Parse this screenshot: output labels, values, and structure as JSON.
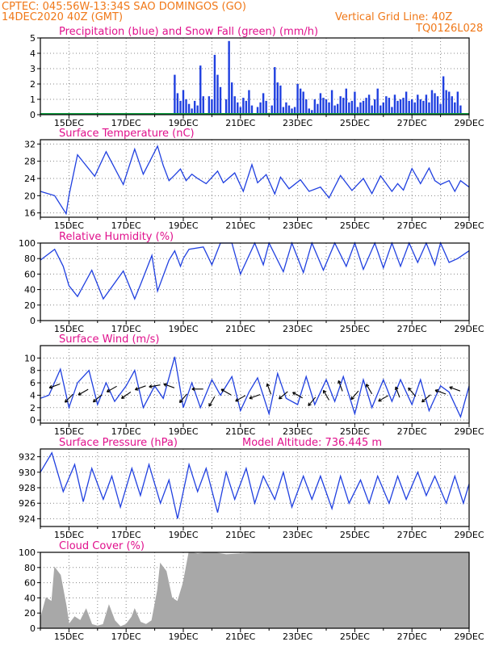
{
  "header": {
    "line1": "CPTEC:  045:56W-13:34S  SAO DOMINGOS (GO)",
    "line2": "14DEC2020 40Z (GMT)",
    "right1": "Vertical Grid Line: 40Z",
    "right2": "TQ0126L028"
  },
  "colors": {
    "header": "#f07818",
    "title": "#e0108c",
    "series": "#2040e0",
    "snow": "#10a040",
    "cloud": "#a8a8a8",
    "grid": "#888888",
    "axis": "#000000"
  },
  "chart_data": [
    {
      "id": "precip",
      "type": "bar",
      "title": "Precipitation (blue) and Snow Fall (green) (mm/h)",
      "ylim": [
        0,
        5
      ],
      "yticks": [
        0,
        1,
        2,
        3,
        4,
        5
      ],
      "xticks": [
        "15DEC",
        "17DEC",
        "19DEC",
        "21DEC",
        "23DEC",
        "25DEC",
        "27DEC",
        "29DEC"
      ],
      "x": [
        4.7,
        4.8,
        4.9,
        5.0,
        5.1,
        5.2,
        5.3,
        5.4,
        5.5,
        5.6,
        5.7,
        5.9,
        6.0,
        6.1,
        6.2,
        6.3,
        6.5,
        6.6,
        6.7,
        6.8,
        6.9,
        7.0,
        7.1,
        7.2,
        7.3,
        7.4,
        7.6,
        7.7,
        7.8,
        7.9,
        8.1,
        8.2,
        8.3,
        8.4,
        8.5,
        8.6,
        8.7,
        8.8,
        8.9,
        9.0,
        9.1,
        9.2,
        9.3,
        9.4,
        9.5,
        9.6,
        9.7,
        9.8,
        9.9,
        10.0,
        10.1,
        10.2,
        10.3,
        10.4,
        10.5,
        10.6,
        10.7,
        10.8,
        10.9,
        11.0,
        11.1,
        11.2,
        11.3,
        11.4,
        11.5,
        11.6,
        11.7,
        11.8,
        11.9,
        12.0,
        12.1,
        12.2,
        12.3,
        12.4,
        12.5,
        12.6,
        12.7,
        12.8,
        12.9,
        13.0,
        13.1,
        13.2,
        13.3,
        13.4,
        13.5,
        13.6,
        13.7,
        13.8,
        13.9,
        14.0,
        14.1,
        14.2,
        14.3,
        14.4,
        14.5,
        14.6,
        14.7
      ],
      "values": [
        2.6,
        1.4,
        0.9,
        1.6,
        1.0,
        0.7,
        0.4,
        0.9,
        0.6,
        3.2,
        1.2,
        1.2,
        1.0,
        3.9,
        2.6,
        1.8,
        1.0,
        4.8,
        2.1,
        1.2,
        0.8,
        0.5,
        1.1,
        0.9,
        1.6,
        0.6,
        0.5,
        0.8,
        1.4,
        0.9,
        0.6,
        3.1,
        2.1,
        1.9,
        0.5,
        0.8,
        0.6,
        0.4,
        0.5,
        2.0,
        1.7,
        1.5,
        1.0,
        0.4,
        0.3,
        1.0,
        0.7,
        1.4,
        1.1,
        1.0,
        0.8,
        1.6,
        0.6,
        0.7,
        1.2,
        1.1,
        1.7,
        0.8,
        0.9,
        1.5,
        0.5,
        0.8,
        0.9,
        1.1,
        1.3,
        0.6,
        1.0,
        1.7,
        0.6,
        0.8,
        1.2,
        1.1,
        0.5,
        1.3,
        0.9,
        1.0,
        1.1,
        1.5,
        0.9,
        1.0,
        0.8,
        1.3,
        1.0,
        0.9,
        1.3,
        0.8,
        1.6,
        1.4,
        1.2,
        0.7,
        2.5,
        1.6,
        1.5,
        1.2,
        0.8,
        1.5,
        0.6
      ]
    },
    {
      "id": "temp",
      "type": "line",
      "title": "Surface Temperature (nC)",
      "ylim": [
        15,
        33
      ],
      "yticks": [
        16,
        20,
        24,
        28,
        32
      ],
      "xticks": [
        "15DEC",
        "17DEC",
        "19DEC",
        "21DEC",
        "23DEC",
        "25DEC",
        "27DEC",
        "29DEC"
      ],
      "x": [
        0.0,
        0.5,
        0.9,
        1.0,
        1.3,
        1.9,
        2.3,
        2.9,
        3.3,
        3.6,
        4.1,
        4.3,
        4.5,
        4.7,
        4.9,
        5.1,
        5.3,
        5.5,
        5.8,
        6.2,
        6.4,
        6.8,
        7.1,
        7.4,
        7.6,
        7.9,
        8.2,
        8.4,
        8.7,
        9.1,
        9.4,
        9.8,
        10.1,
        10.5,
        10.9,
        11.3,
        11.6,
        11.9,
        12.3,
        12.5,
        12.7,
        13.0,
        13.3,
        13.6,
        13.8,
        14.0,
        14.3,
        14.5,
        14.7,
        15.0
      ],
      "values": [
        21.0,
        20.0,
        15.8,
        20.0,
        29.5,
        24.5,
        30.2,
        22.6,
        30.8,
        25.0,
        31.5,
        27.0,
        23.5,
        24.8,
        26.2,
        23.5,
        25.0,
        24.0,
        22.8,
        25.7,
        23.0,
        25.3,
        21.0,
        27.2,
        23.0,
        24.9,
        20.4,
        24.3,
        21.6,
        23.7,
        21.0,
        22.0,
        19.5,
        24.7,
        21.2,
        24.0,
        20.5,
        24.6,
        21.0,
        22.8,
        21.3,
        26.3,
        22.8,
        26.4,
        23.5,
        22.6,
        23.5,
        21.0,
        23.5,
        22.0
      ]
    },
    {
      "id": "rh",
      "type": "line",
      "title": "Relative Humidity (%)",
      "ylim": [
        0,
        100
      ],
      "yticks": [
        0,
        20,
        40,
        60,
        80,
        100
      ],
      "xticks": [
        "15DEC",
        "17DEC",
        "19DEC",
        "21DEC",
        "23DEC",
        "25DEC",
        "27DEC",
        "29DEC"
      ],
      "x": [
        0.0,
        0.5,
        0.8,
        1.0,
        1.3,
        1.8,
        2.2,
        2.9,
        3.3,
        3.5,
        3.9,
        4.1,
        4.5,
        4.7,
        4.9,
        5.0,
        5.2,
        5.7,
        6.0,
        6.3,
        6.7,
        7.0,
        7.5,
        7.8,
        8.0,
        8.5,
        8.8,
        9.2,
        9.5,
        9.9,
        10.3,
        10.7,
        11.0,
        11.3,
        11.7,
        12.0,
        12.3,
        12.6,
        12.9,
        13.2,
        13.5,
        13.8,
        14.0,
        14.3,
        14.6,
        15.0
      ],
      "values": [
        78,
        92,
        70,
        45,
        31,
        65,
        28,
        64,
        28,
        46,
        84,
        38,
        78,
        90,
        70,
        80,
        92,
        95,
        72,
        100,
        100,
        60,
        100,
        72,
        100,
        63,
        100,
        62,
        100,
        65,
        100,
        70,
        100,
        66,
        100,
        68,
        100,
        70,
        100,
        75,
        100,
        72,
        100,
        75,
        80,
        90
      ]
    },
    {
      "id": "wind",
      "type": "line",
      "title": "Surface Wind (m/s)",
      "ylim": [
        -0.5,
        12
      ],
      "yticks": [
        0,
        2,
        4,
        6,
        8,
        10
      ],
      "xticks": [
        "15DEC",
        "17DEC",
        "19DEC",
        "21DEC",
        "23DEC",
        "25DEC",
        "27DEC",
        "29DEC"
      ],
      "x": [
        0.0,
        0.3,
        0.7,
        1.0,
        1.3,
        1.7,
        2.0,
        2.3,
        2.6,
        3.0,
        3.3,
        3.6,
        4.0,
        4.3,
        4.7,
        5.0,
        5.3,
        5.6,
        6.0,
        6.3,
        6.7,
        7.0,
        7.3,
        7.6,
        8.0,
        8.3,
        8.6,
        9.0,
        9.3,
        9.6,
        10.0,
        10.3,
        10.6,
        11.0,
        11.3,
        11.6,
        12.0,
        12.3,
        12.6,
        13.0,
        13.3,
        13.6,
        14.0,
        14.3,
        14.7,
        15.0
      ],
      "values": [
        3.5,
        4.0,
        8.2,
        2.0,
        6.0,
        8.0,
        2.5,
        6.0,
        3.0,
        5.5,
        8.0,
        2.0,
        5.5,
        3.5,
        10.2,
        2.0,
        6.0,
        2.0,
        6.5,
        4.0,
        7.0,
        1.5,
        4.5,
        6.8,
        1.0,
        7.5,
        3.5,
        2.5,
        7.0,
        2.5,
        6.5,
        3.0,
        7.0,
        1.0,
        6.5,
        2.0,
        6.5,
        3.0,
        6.5,
        2.5,
        6.5,
        1.5,
        5.5,
        4.5,
        0.5,
        5.5
      ],
      "arrows": [
        {
          "x": 0.5,
          "y": 5.5,
          "dir": 250
        },
        {
          "x": 1.0,
          "y": 3.5,
          "dir": 225
        },
        {
          "x": 1.5,
          "y": 4.5,
          "dir": 240
        },
        {
          "x": 2.0,
          "y": 3.5,
          "dir": 230
        },
        {
          "x": 2.5,
          "y": 5.0,
          "dir": 240
        },
        {
          "x": 3.0,
          "y": 4.0,
          "dir": 235
        },
        {
          "x": 3.5,
          "y": 5.2,
          "dir": 250
        },
        {
          "x": 4.0,
          "y": 5.5,
          "dir": 260
        },
        {
          "x": 4.5,
          "y": 5.5,
          "dir": 290
        },
        {
          "x": 5.0,
          "y": 3.5,
          "dir": 220
        },
        {
          "x": 5.5,
          "y": 5.0,
          "dir": 270
        },
        {
          "x": 6.0,
          "y": 3.0,
          "dir": 210
        },
        {
          "x": 6.5,
          "y": 4.5,
          "dir": 300
        },
        {
          "x": 7.0,
          "y": 3.5,
          "dir": 240
        },
        {
          "x": 7.5,
          "y": 3.8,
          "dir": 250
        },
        {
          "x": 8.0,
          "y": 5.0,
          "dir": 340
        },
        {
          "x": 8.5,
          "y": 4.0,
          "dir": 230
        },
        {
          "x": 9.0,
          "y": 4.0,
          "dir": 300
        },
        {
          "x": 9.5,
          "y": 3.0,
          "dir": 220
        },
        {
          "x": 10.0,
          "y": 4.0,
          "dir": 330
        },
        {
          "x": 10.5,
          "y": 5.5,
          "dir": 340
        },
        {
          "x": 11.0,
          "y": 4.0,
          "dir": 220
        },
        {
          "x": 11.5,
          "y": 5.0,
          "dir": 330
        },
        {
          "x": 12.0,
          "y": 3.5,
          "dir": 240
        },
        {
          "x": 12.5,
          "y": 4.5,
          "dir": 340
        },
        {
          "x": 13.0,
          "y": 4.5,
          "dir": 320
        },
        {
          "x": 13.5,
          "y": 3.5,
          "dir": 230
        },
        {
          "x": 14.0,
          "y": 4.5,
          "dir": 290
        },
        {
          "x": 14.5,
          "y": 5.0,
          "dir": 290
        }
      ]
    },
    {
      "id": "press",
      "type": "line",
      "title": "Surface Pressure (hPa)",
      "annotation": "Model Altitude: 736.445 m",
      "ylim": [
        923,
        933
      ],
      "yticks": [
        924,
        926,
        928,
        930,
        932
      ],
      "xticks": [
        "15DEC",
        "17DEC",
        "19DEC",
        "21DEC",
        "23DEC",
        "25DEC",
        "27DEC",
        "29DEC"
      ],
      "x": [
        0.0,
        0.4,
        0.8,
        1.2,
        1.5,
        1.8,
        2.2,
        2.5,
        2.8,
        3.2,
        3.5,
        3.8,
        4.2,
        4.5,
        4.8,
        5.2,
        5.5,
        5.8,
        6.2,
        6.5,
        6.8,
        7.2,
        7.5,
        7.8,
        8.2,
        8.5,
        8.8,
        9.2,
        9.5,
        9.8,
        10.2,
        10.5,
        10.8,
        11.2,
        11.5,
        11.8,
        12.2,
        12.5,
        12.8,
        13.2,
        13.5,
        13.8,
        14.2,
        14.5,
        14.8,
        15.0
      ],
      "values": [
        930.0,
        932.5,
        927.5,
        931.0,
        926.2,
        930.5,
        926.5,
        929.5,
        925.5,
        930.5,
        927.0,
        931.0,
        926.0,
        929.0,
        924.0,
        931.0,
        927.5,
        930.5,
        924.8,
        930.0,
        926.5,
        930.5,
        926.0,
        929.5,
        926.5,
        930.0,
        925.5,
        929.5,
        926.5,
        929.5,
        925.3,
        929.5,
        926.0,
        929.0,
        926.0,
        929.5,
        926.0,
        929.5,
        926.5,
        930.0,
        927.0,
        929.5,
        926.0,
        929.5,
        926.0,
        928.5
      ]
    },
    {
      "id": "cloud",
      "type": "area",
      "title": "Cloud Cover (%)",
      "ylim": [
        0,
        100
      ],
      "yticks": [
        0,
        20,
        40,
        60,
        80,
        100
      ],
      "xticks": [
        "15DEC",
        "17DEC",
        "19DEC",
        "21DEC",
        "23DEC",
        "25DEC",
        "27DEC",
        "29DEC"
      ],
      "x": [
        0.0,
        0.2,
        0.4,
        0.5,
        0.7,
        0.9,
        1.0,
        1.2,
        1.4,
        1.6,
        1.8,
        2.0,
        2.2,
        2.4,
        2.6,
        2.8,
        3.0,
        3.2,
        3.3,
        3.5,
        3.7,
        3.9,
        4.1,
        4.2,
        4.4,
        4.6,
        4.8,
        5.0,
        5.2,
        5.5,
        6.0,
        6.5,
        7.0,
        8.0,
        9.0,
        10.0,
        12.0,
        14.0,
        15.0
      ],
      "values": [
        12,
        40,
        35,
        80,
        70,
        30,
        5,
        15,
        10,
        25,
        5,
        3,
        5,
        30,
        10,
        2,
        5,
        15,
        25,
        8,
        5,
        10,
        50,
        85,
        75,
        40,
        35,
        60,
        100,
        98,
        100,
        97,
        98,
        100,
        100,
        100,
        100,
        100,
        100
      ]
    }
  ]
}
